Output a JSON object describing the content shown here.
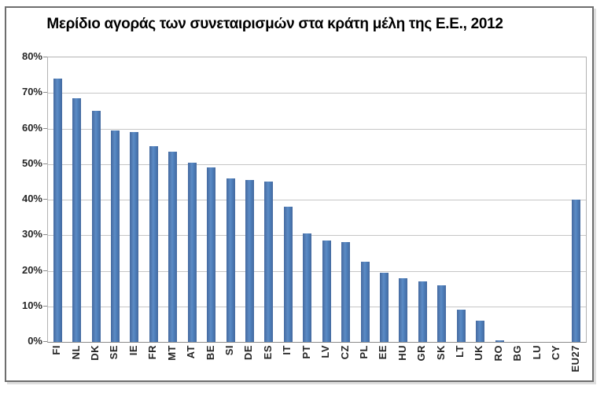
{
  "chart_data": {
    "type": "bar",
    "title": "Μερίδιο αγοράς των συνεταιρισμών στα κράτη μέλη της Ε.Ε., 2012",
    "categories": [
      "FI",
      "NL",
      "DK",
      "SE",
      "IE",
      "FR",
      "MT",
      "AT",
      "BE",
      "SI",
      "DE",
      "ES",
      "IT",
      "PT",
      "LV",
      "CZ",
      "PL",
      "EE",
      "HU",
      "GR",
      "SK",
      "LT",
      "UK",
      "RO",
      "BG",
      "LU",
      "CY",
      "EU27"
    ],
    "values": [
      74,
      68.5,
      65,
      59.5,
      59,
      55,
      53.5,
      50.5,
      49,
      46,
      45.5,
      45,
      38,
      30.5,
      28.5,
      28,
      22.5,
      19.5,
      18,
      17,
      16,
      9,
      6,
      0.5,
      0,
      0,
      0,
      40
    ],
    "unit": "%",
    "xlabel": "",
    "ylabel": "",
    "ylim": [
      0,
      80
    ],
    "ytick_step": 10,
    "ytick_labels": [
      "0%",
      "10%",
      "20%",
      "30%",
      "40%",
      "50%",
      "60%",
      "70%",
      "80%"
    ],
    "grid": "horizontal",
    "legend": "none",
    "colors": {
      "bar_fill": "#4f81bd",
      "bar_edge": "#44699f",
      "gridline": "#c6c6c6",
      "plot_border": "#b3b3b3",
      "axis_line": "#8a8a8a",
      "label_text": "#262626",
      "title_text": "#000000",
      "frame_border": "#6e6e6e",
      "background": "#ffffff"
    }
  }
}
